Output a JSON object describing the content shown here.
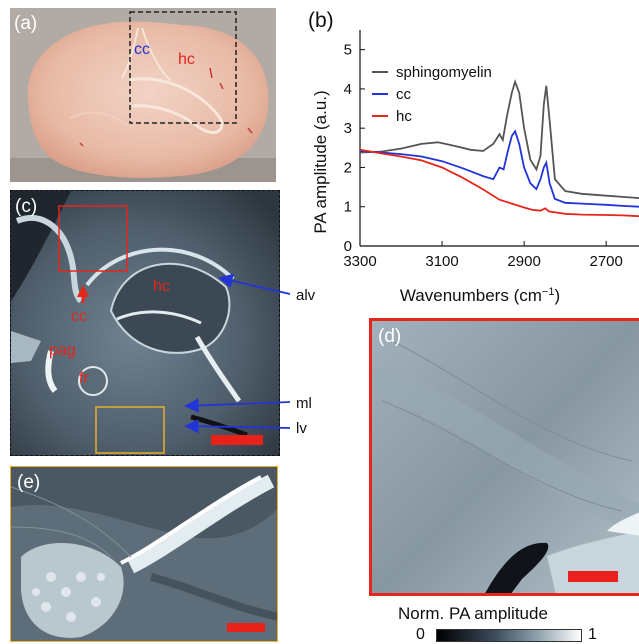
{
  "figure": {
    "panel_a": {
      "label": "(a)",
      "cc_label": "cc",
      "hc_label": "hc"
    },
    "panel_b": {
      "label": "(b)"
    },
    "panel_c": {
      "label": "(c)",
      "labels": {
        "hc": "hc",
        "cc": "cc",
        "pag": "pag",
        "fr": "fr"
      },
      "arrows": {
        "alv": "alv",
        "ml": "ml",
        "lv": "lv"
      }
    },
    "panel_d": {
      "label": "(d)"
    },
    "panel_e": {
      "label": "(e)"
    },
    "colorbar": {
      "title": "Norm. PA amplitude",
      "min": "0",
      "max": "1"
    },
    "colors": {
      "red": "#e4261b",
      "blue": "#2233d8",
      "yellow": "#e6b028",
      "gray": "#555555"
    }
  },
  "chart_data": {
    "type": "line",
    "xlabel": "Wavenumbers (cm",
    "xlabel_sup": "−1",
    "xlabel_end": ")",
    "ylabel": "PA amplitude (a.u.)",
    "xlim": [
      3300,
      2620
    ],
    "ylim": [
      0,
      5.5
    ],
    "xticks": [
      3300,
      3100,
      2900,
      2700
    ],
    "yticks": [
      0,
      1,
      2,
      3,
      4,
      5
    ],
    "legend_position": "top-left",
    "series": [
      {
        "name": "sphingomyelin",
        "color": "#555555",
        "points": [
          [
            3300,
            2.38
          ],
          [
            3250,
            2.4
          ],
          [
            3200,
            2.48
          ],
          [
            3150,
            2.6
          ],
          [
            3110,
            2.64
          ],
          [
            3070,
            2.55
          ],
          [
            3030,
            2.45
          ],
          [
            3000,
            2.42
          ],
          [
            2975,
            2.6
          ],
          [
            2960,
            2.85
          ],
          [
            2952,
            2.7
          ],
          [
            2942,
            3.3
          ],
          [
            2930,
            3.9
          ],
          [
            2922,
            4.18
          ],
          [
            2912,
            3.9
          ],
          [
            2900,
            3.0
          ],
          [
            2885,
            2.2
          ],
          [
            2870,
            1.95
          ],
          [
            2860,
            2.3
          ],
          [
            2852,
            3.6
          ],
          [
            2846,
            4.08
          ],
          [
            2838,
            3.2
          ],
          [
            2825,
            1.7
          ],
          [
            2800,
            1.4
          ],
          [
            2760,
            1.33
          ],
          [
            2700,
            1.28
          ],
          [
            2660,
            1.25
          ],
          [
            2620,
            1.22
          ]
        ]
      },
      {
        "name": "cc",
        "color": "#2233d8",
        "points": [
          [
            3300,
            2.42
          ],
          [
            3250,
            2.38
          ],
          [
            3200,
            2.34
          ],
          [
            3150,
            2.28
          ],
          [
            3100,
            2.16
          ],
          [
            3050,
            1.98
          ],
          [
            3000,
            1.78
          ],
          [
            2975,
            1.7
          ],
          [
            2960,
            2.0
          ],
          [
            2950,
            1.95
          ],
          [
            2940,
            2.4
          ],
          [
            2930,
            2.8
          ],
          [
            2922,
            2.92
          ],
          [
            2912,
            2.6
          ],
          [
            2900,
            2.0
          ],
          [
            2885,
            1.6
          ],
          [
            2870,
            1.45
          ],
          [
            2860,
            1.7
          ],
          [
            2852,
            2.0
          ],
          [
            2846,
            2.12
          ],
          [
            2838,
            1.6
          ],
          [
            2825,
            1.2
          ],
          [
            2800,
            1.1
          ],
          [
            2760,
            1.08
          ],
          [
            2700,
            1.05
          ],
          [
            2660,
            1.02
          ],
          [
            2620,
            1.0
          ]
        ]
      },
      {
        "name": "hc",
        "color": "#e4261b",
        "points": [
          [
            3300,
            2.45
          ],
          [
            3250,
            2.36
          ],
          [
            3200,
            2.28
          ],
          [
            3150,
            2.18
          ],
          [
            3100,
            2.0
          ],
          [
            3050,
            1.74
          ],
          [
            3000,
            1.44
          ],
          [
            2960,
            1.18
          ],
          [
            2930,
            1.08
          ],
          [
            2900,
            0.98
          ],
          [
            2880,
            0.92
          ],
          [
            2860,
            0.9
          ],
          [
            2848,
            0.96
          ],
          [
            2840,
            0.88
          ],
          [
            2800,
            0.82
          ],
          [
            2760,
            0.8
          ],
          [
            2700,
            0.79
          ],
          [
            2660,
            0.78
          ],
          [
            2620,
            0.76
          ]
        ]
      }
    ]
  }
}
